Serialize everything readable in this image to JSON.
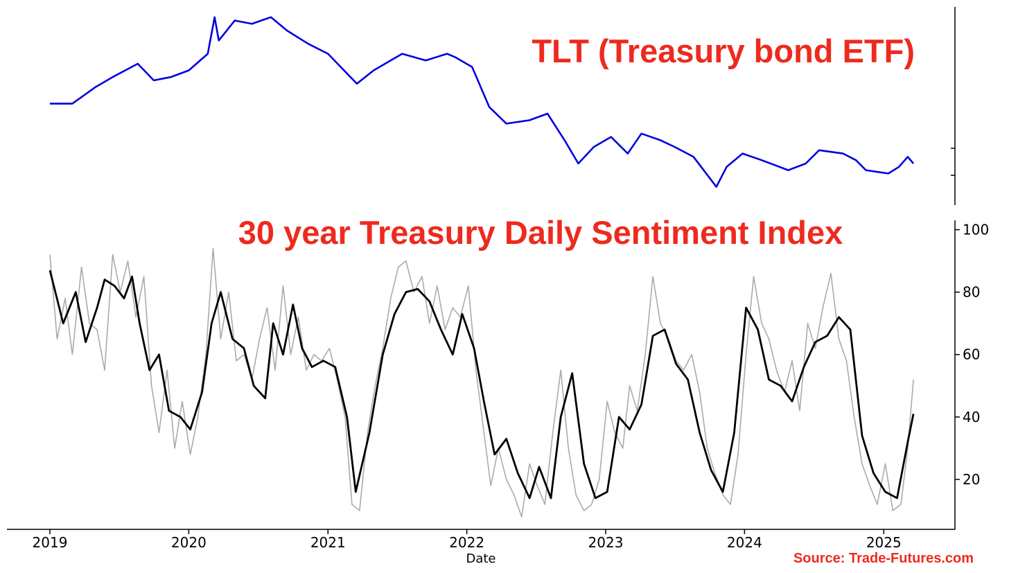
{
  "chart_data": [
    {
      "type": "line",
      "title": "TLT (Treasury bond ETF)",
      "series": [
        {
          "color": "#0000e0",
          "x": [
            "2019-01-01",
            "2019-03-01",
            "2019-05-01",
            "2019-06-15",
            "2019-08-20",
            "2019-10-01",
            "2019-11-15",
            "2020-01-01",
            "2020-02-20",
            "2020-03-09",
            "2020-03-20",
            "2020-05-01",
            "2020-06-15",
            "2020-08-04",
            "2020-09-15",
            "2020-11-10",
            "2021-01-01",
            "2021-03-18",
            "2021-05-01",
            "2021-07-15",
            "2021-09-15",
            "2021-11-10",
            "2021-12-01",
            "2022-01-15",
            "2022-03-01",
            "2022-04-15",
            "2022-06-14",
            "2022-08-01",
            "2022-09-15",
            "2022-10-21",
            "2022-12-01",
            "2023-01-15",
            "2023-02-28",
            "2023-04-05",
            "2023-05-25",
            "2023-07-01",
            "2023-08-20",
            "2023-10-19",
            "2023-11-15",
            "2023-12-27",
            "2024-02-15",
            "2024-04-25",
            "2024-06-10",
            "2024-07-15",
            "2024-09-16",
            "2024-10-20",
            "2024-11-15",
            "2025-01-13",
            "2025-02-10",
            "2025-03-05",
            "2025-03-20"
          ],
          "y": [
            0.28,
            0.28,
            0.33,
            0.36,
            0.4,
            0.35,
            0.36,
            0.38,
            0.43,
            0.54,
            0.47,
            0.53,
            0.52,
            0.54,
            0.5,
            0.46,
            0.43,
            0.34,
            0.38,
            0.43,
            0.41,
            0.43,
            0.42,
            0.39,
            0.27,
            0.22,
            0.23,
            0.25,
            0.17,
            0.1,
            0.15,
            0.18,
            0.13,
            0.19,
            0.17,
            0.15,
            0.12,
            0.03,
            0.09,
            0.13,
            0.11,
            0.08,
            0.1,
            0.14,
            0.13,
            0.11,
            0.08,
            0.07,
            0.09,
            0.12,
            0.1
          ]
        }
      ]
    },
    {
      "type": "line",
      "title": "30 year Treasury Daily Sentiment Index",
      "xlabel": "Date",
      "x_ticks": [
        "2019",
        "2020",
        "2021",
        "2022",
        "2023",
        "2024",
        "2025"
      ],
      "y_ticks": [
        "20",
        "40",
        "60",
        "80",
        "100"
      ],
      "ylim": [
        4,
        103
      ],
      "series": [
        {
          "color": "#aaaaaa",
          "x": [
            "2019-01-01",
            "2019-01-20",
            "2019-02-10",
            "2019-03-01",
            "2019-03-25",
            "2019-04-15",
            "2019-05-05",
            "2019-05-25",
            "2019-06-15",
            "2019-07-05",
            "2019-07-25",
            "2019-08-15",
            "2019-09-05",
            "2019-09-25",
            "2019-10-15",
            "2019-11-05",
            "2019-11-25",
            "2019-12-15",
            "2020-01-05",
            "2020-01-25",
            "2020-02-15",
            "2020-03-05",
            "2020-03-25",
            "2020-04-15",
            "2020-05-05",
            "2020-05-25",
            "2020-06-15",
            "2020-07-05",
            "2020-07-25",
            "2020-08-15",
            "2020-09-05",
            "2020-09-25",
            "2020-10-15",
            "2020-11-05",
            "2020-11-25",
            "2020-12-15",
            "2021-01-05",
            "2021-01-25",
            "2021-02-15",
            "2021-03-05",
            "2021-03-25",
            "2021-04-15",
            "2021-05-05",
            "2021-05-25",
            "2021-06-15",
            "2021-07-05",
            "2021-07-25",
            "2021-08-15",
            "2021-09-05",
            "2021-09-25",
            "2021-10-15",
            "2021-11-05",
            "2021-11-25",
            "2021-12-15",
            "2022-01-05",
            "2022-01-25",
            "2022-02-15",
            "2022-03-05",
            "2022-03-25",
            "2022-04-15",
            "2022-05-05",
            "2022-05-25",
            "2022-06-15",
            "2022-07-05",
            "2022-07-25",
            "2022-08-15",
            "2022-09-05",
            "2022-09-25",
            "2022-10-15",
            "2022-11-05",
            "2022-11-25",
            "2022-12-15",
            "2023-01-05",
            "2023-01-25",
            "2023-02-15",
            "2023-03-05",
            "2023-03-25",
            "2023-04-15",
            "2023-05-05",
            "2023-05-25",
            "2023-06-15",
            "2023-07-05",
            "2023-07-25",
            "2023-08-15",
            "2023-09-05",
            "2023-09-25",
            "2023-10-15",
            "2023-11-05",
            "2023-11-25",
            "2023-12-15",
            "2024-01-05",
            "2024-01-25",
            "2024-02-15",
            "2024-03-05",
            "2024-03-25",
            "2024-04-15",
            "2024-05-05",
            "2024-05-25",
            "2024-06-15",
            "2024-07-05",
            "2024-07-25",
            "2024-08-15",
            "2024-09-05",
            "2024-09-25",
            "2024-10-15",
            "2024-11-05",
            "2024-11-25",
            "2024-12-15",
            "2025-01-05",
            "2025-01-25",
            "2025-02-15",
            "2025-03-05",
            "2025-03-20"
          ],
          "y": [
            92,
            65,
            78,
            60,
            88,
            70,
            68,
            55,
            92,
            80,
            90,
            72,
            85,
            50,
            35,
            55,
            30,
            45,
            28,
            40,
            60,
            94,
            65,
            80,
            58,
            60,
            52,
            65,
            75,
            55,
            82,
            60,
            72,
            55,
            60,
            58,
            62,
            52,
            40,
            12,
            10,
            35,
            50,
            62,
            78,
            88,
            90,
            80,
            85,
            70,
            82,
            68,
            75,
            72,
            82,
            55,
            35,
            18,
            30,
            20,
            15,
            8,
            25,
            18,
            12,
            35,
            55,
            30,
            15,
            10,
            12,
            20,
            45,
            35,
            30,
            50,
            42,
            60,
            85,
            70,
            65,
            58,
            55,
            60,
            48,
            30,
            22,
            15,
            12,
            28,
            60,
            85,
            70,
            65,
            55,
            48,
            58,
            42,
            70,
            62,
            75,
            86,
            65,
            58,
            40,
            25,
            18,
            12,
            25,
            10,
            12,
            30,
            52
          ]
        },
        {
          "color": "#000000",
          "x": [
            "2019-01-01",
            "2019-02-05",
            "2019-03-10",
            "2019-04-05",
            "2019-05-05",
            "2019-05-25",
            "2019-06-20",
            "2019-07-15",
            "2019-08-05",
            "2019-08-25",
            "2019-09-20",
            "2019-10-15",
            "2019-11-10",
            "2019-12-10",
            "2020-01-05",
            "2020-02-05",
            "2020-03-01",
            "2020-03-25",
            "2020-04-25",
            "2020-05-25",
            "2020-06-20",
            "2020-07-20",
            "2020-08-10",
            "2020-09-05",
            "2020-10-01",
            "2020-10-25",
            "2020-11-20",
            "2020-12-20",
            "2021-01-20",
            "2021-02-20",
            "2021-03-15",
            "2021-04-20",
            "2021-05-25",
            "2021-06-25",
            "2021-07-25",
            "2021-08-25",
            "2021-09-25",
            "2021-10-25",
            "2021-11-25",
            "2021-12-20",
            "2022-01-20",
            "2022-02-15",
            "2022-03-15",
            "2022-04-15",
            "2022-05-15",
            "2022-06-15",
            "2022-07-10",
            "2022-08-10",
            "2022-09-05",
            "2022-10-05",
            "2022-11-05",
            "2022-12-05",
            "2023-01-05",
            "2023-02-05",
            "2023-03-05",
            "2023-04-05",
            "2023-05-05",
            "2023-06-05",
            "2023-07-05",
            "2023-08-05",
            "2023-09-05",
            "2023-10-05",
            "2023-11-05",
            "2023-12-05",
            "2024-01-05",
            "2024-02-05",
            "2024-03-05",
            "2024-04-05",
            "2024-05-05",
            "2024-06-05",
            "2024-07-05",
            "2024-08-05",
            "2024-09-05",
            "2024-10-05",
            "2024-11-05",
            "2024-12-05",
            "2025-01-05",
            "2025-02-05",
            "2025-03-05",
            "2025-03-20"
          ],
          "y": [
            87,
            70,
            80,
            64,
            75,
            84,
            82,
            78,
            85,
            70,
            55,
            60,
            42,
            40,
            36,
            48,
            70,
            80,
            65,
            62,
            50,
            46,
            70,
            60,
            76,
            62,
            56,
            58,
            56,
            40,
            16,
            35,
            60,
            73,
            80,
            81,
            77,
            68,
            60,
            73,
            62,
            45,
            28,
            33,
            22,
            14,
            24,
            14,
            40,
            54,
            25,
            14,
            16,
            40,
            36,
            44,
            66,
            68,
            57,
            52,
            35,
            23,
            16,
            35,
            75,
            68,
            52,
            50,
            45,
            56,
            64,
            66,
            72,
            68,
            34,
            22,
            16,
            14,
            32,
            41
          ]
        }
      ]
    }
  ],
  "source": "Source: Trade-Futures.com"
}
